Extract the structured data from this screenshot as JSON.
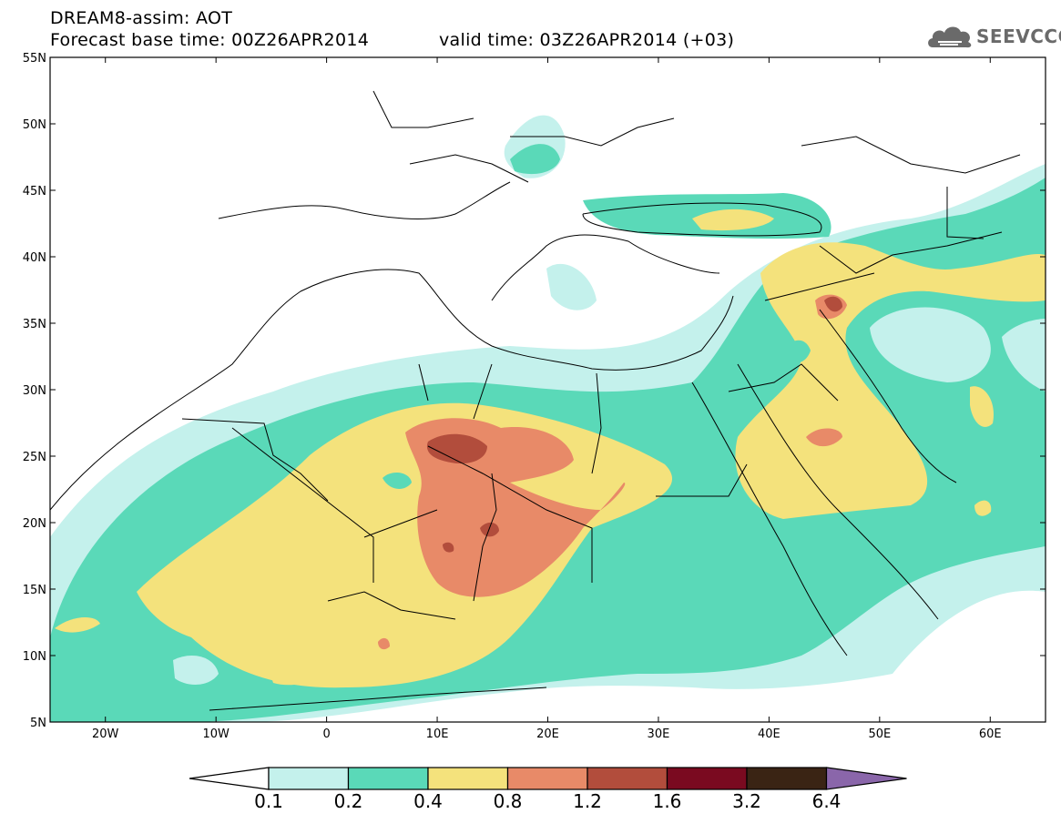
{
  "header": {
    "title": "DREAM8-assim: AOT",
    "base_time": "Forecast base time: 00Z26APR2014",
    "valid_time": "valid time: 03Z26APR2014 (+03)"
  },
  "logo": {
    "text": "SEEVCCC",
    "icon": "cloud-logo-icon"
  },
  "map": {
    "variable": "AOT",
    "lat_range": [
      5,
      55
    ],
    "lon_range": [
      -25,
      65
    ],
    "lat_ticks": [
      "55N",
      "50N",
      "45N",
      "40N",
      "35N",
      "30N",
      "25N",
      "20N",
      "15N",
      "10N",
      "5N"
    ],
    "lon_ticks": [
      "20W",
      "10W",
      "0",
      "10E",
      "20E",
      "30E",
      "40E",
      "50E",
      "60E"
    ]
  },
  "colorbar": {
    "labels": [
      "0.1",
      "0.2",
      "0.4",
      "0.8",
      "1.2",
      "1.6",
      "3.2",
      "6.4"
    ],
    "colors": [
      "#ffffff",
      "#c4f1ec",
      "#5ad9b8",
      "#f4e27c",
      "#e88a68",
      "#b24d3c",
      "#7a0a20",
      "#3a2414",
      "#8a66aa"
    ]
  }
}
